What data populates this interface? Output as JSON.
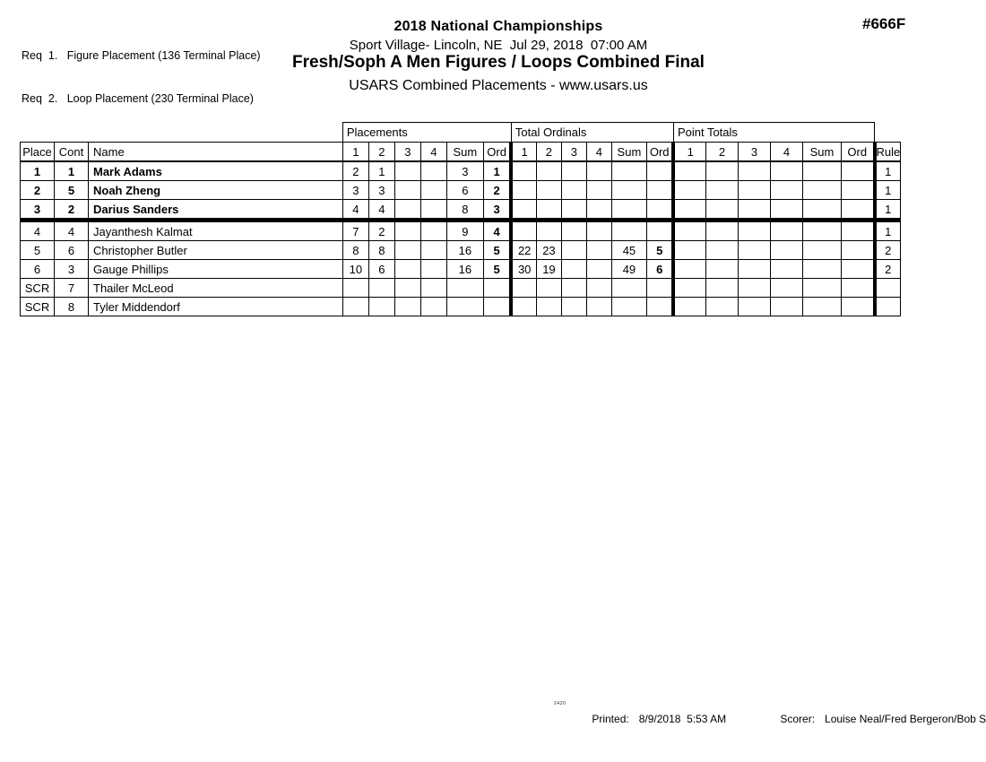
{
  "requirements": {
    "line1": "Req  1.   Figure Placement (136 Terminal Place)",
    "line2": "Req  2.   Loop Placement (230 Terminal Place)"
  },
  "header": {
    "title": "2018 National Championships",
    "venue_datetime": "Sport Village- Lincoln, NE  Jul 29, 2018  07:00 AM",
    "event_title": "Fresh/Soph A Men Figures / Loops Combined Final",
    "subtitle": "USARS Combined Placements - www.usars.us",
    "doc_number": "#666F"
  },
  "table": {
    "group_headers": [
      "Placements",
      "Total Ordinals",
      "Point Totals"
    ],
    "id_columns": [
      "Place",
      "Cont",
      "Name"
    ],
    "sub_columns": [
      "1",
      "2",
      "3",
      "4",
      "Sum",
      "Ord"
    ],
    "rule_column": "Rule",
    "rows": [
      {
        "place": "1",
        "cont": "1",
        "name": "Mark Adams",
        "bold": true,
        "thick_top": false,
        "placements": [
          "2",
          "1",
          "",
          "",
          "3",
          "1"
        ],
        "total_ordinals": [
          "",
          "",
          "",
          "",
          "",
          ""
        ],
        "point_totals": [
          "",
          "",
          "",
          "",
          "",
          ""
        ],
        "rule": "1"
      },
      {
        "place": "2",
        "cont": "5",
        "name": "Noah Zheng",
        "bold": true,
        "thick_top": false,
        "placements": [
          "3",
          "3",
          "",
          "",
          "6",
          "2"
        ],
        "total_ordinals": [
          "",
          "",
          "",
          "",
          "",
          ""
        ],
        "point_totals": [
          "",
          "",
          "",
          "",
          "",
          ""
        ],
        "rule": "1"
      },
      {
        "place": "3",
        "cont": "2",
        "name": "Darius Sanders",
        "bold": true,
        "thick_top": false,
        "placements": [
          "4",
          "4",
          "",
          "",
          "8",
          "3"
        ],
        "total_ordinals": [
          "",
          "",
          "",
          "",
          "",
          ""
        ],
        "point_totals": [
          "",
          "",
          "",
          "",
          "",
          ""
        ],
        "rule": "1"
      },
      {
        "place": "4",
        "cont": "4",
        "name": "Jayanthesh Kalmat",
        "bold": false,
        "thick_top": true,
        "placements": [
          "7",
          "2",
          "",
          "",
          "9",
          "4"
        ],
        "total_ordinals": [
          "",
          "",
          "",
          "",
          "",
          ""
        ],
        "point_totals": [
          "",
          "",
          "",
          "",
          "",
          ""
        ],
        "rule": "1"
      },
      {
        "place": "5",
        "cont": "6",
        "name": "Christopher Butler",
        "bold": false,
        "thick_top": false,
        "placements": [
          "8",
          "8",
          "",
          "",
          "16",
          "5"
        ],
        "total_ordinals": [
          "22",
          "23",
          "",
          "",
          "45",
          "5"
        ],
        "point_totals": [
          "",
          "",
          "",
          "",
          "",
          ""
        ],
        "rule": "2"
      },
      {
        "place": "6",
        "cont": "3",
        "name": "Gauge Phillips",
        "bold": false,
        "thick_top": false,
        "placements": [
          "10",
          "6",
          "",
          "",
          "16",
          "5"
        ],
        "total_ordinals": [
          "30",
          "19",
          "",
          "",
          "49",
          "6"
        ],
        "point_totals": [
          "",
          "",
          "",
          "",
          "",
          ""
        ],
        "rule": "2"
      },
      {
        "place": "SCR",
        "cont": "7",
        "name": "Thailer McLeod",
        "bold": false,
        "thick_top": false,
        "placements": [
          "",
          "",
          "",
          "",
          "",
          ""
        ],
        "total_ordinals": [
          "",
          "",
          "",
          "",
          "",
          ""
        ],
        "point_totals": [
          "",
          "",
          "",
          "",
          "",
          ""
        ],
        "rule": ""
      },
      {
        "place": "SCR",
        "cont": "8",
        "name": "Tyler Middendorf",
        "bold": false,
        "thick_top": false,
        "placements": [
          "",
          "",
          "",
          "",
          "",
          ""
        ],
        "total_ordinals": [
          "",
          "",
          "",
          "",
          "",
          ""
        ],
        "point_totals": [
          "",
          "",
          "",
          "",
          "",
          ""
        ],
        "rule": ""
      }
    ]
  },
  "footer": {
    "stamp": "2420",
    "printed_label": "Printed:",
    "printed_value": "8/9/2018  5:53 AM",
    "scorer_label": "Scorer:",
    "scorer_value": "Louise Neal/Fred Bergeron/Bob Styma"
  }
}
